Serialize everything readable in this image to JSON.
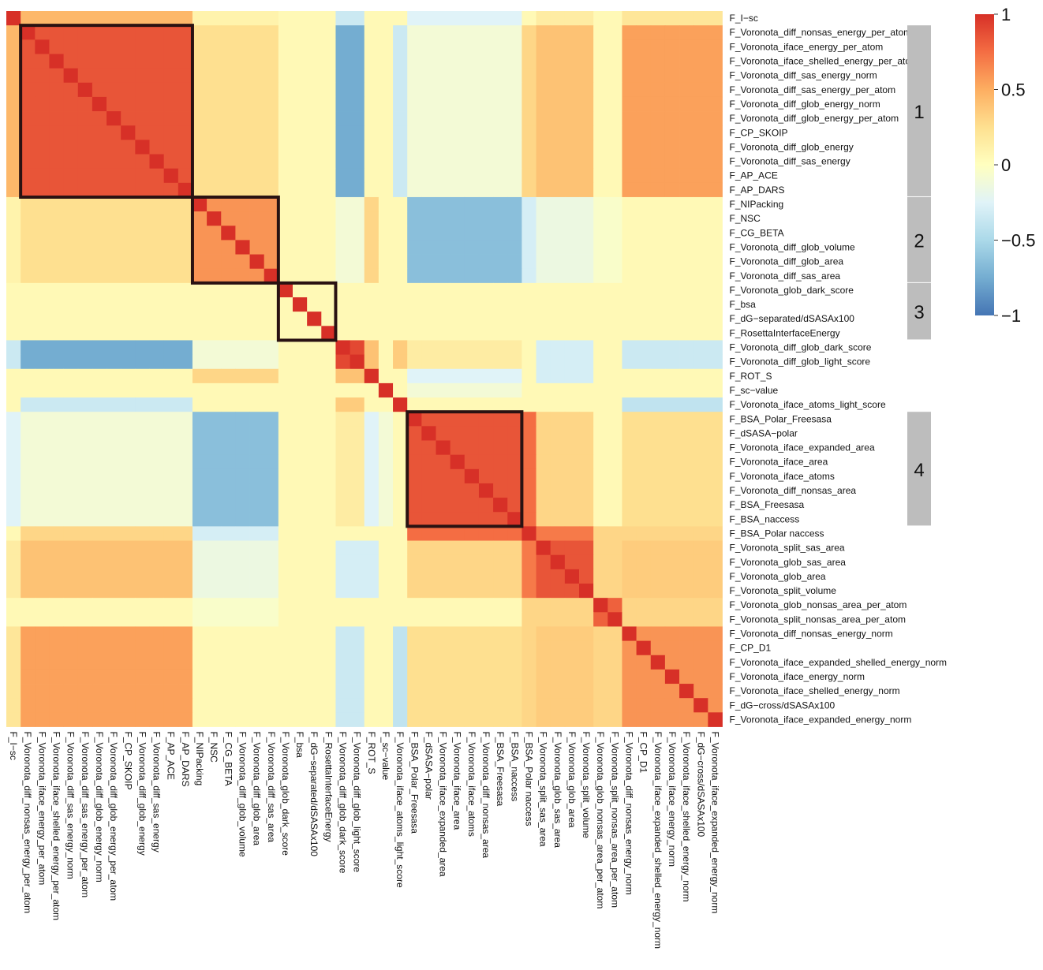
{
  "chart_data": {
    "type": "heatmap",
    "title": "",
    "xlabel": "",
    "ylabel": "",
    "value_range": [
      -1,
      1
    ],
    "grid": false,
    "legend_position": "top-right",
    "colorbar": {
      "ticks": [
        1,
        0.5,
        0,
        -0.5,
        -1
      ],
      "tick_labels": [
        "1",
        "0.5",
        "0",
        "−0.5",
        "−1"
      ],
      "colors": [
        "#d73027",
        "#f46d43",
        "#fdae61",
        "#fee090",
        "#ffffbf",
        "#e0f3f8",
        "#abd9e9",
        "#74add1",
        "#4575b4"
      ]
    },
    "variables": [
      "F_I−sc",
      "F_Voronota_diff_nonsas_energy_per_atom",
      "F_Voronota_iface_energy_per_atom",
      "F_Voronota_iface_shelled_energy_per_atom",
      "F_Voronota_diff_sas_energy_norm",
      "F_Voronota_diff_sas_energy_per_atom",
      "F_Voronota_diff_glob_energy_norm",
      "F_Voronota_diff_glob_energy_per_atom",
      "F_CP_SKOIP",
      "F_Voronota_diff_glob_energy",
      "F_Voronota_diff_sas_energy",
      "F_AP_ACE",
      "F_AP_DARS",
      "F_NIPacking",
      "F_NSC",
      "F_CG_BETA",
      "F_Voronota_diff_glob_volume",
      "F_Voronota_diff_glob_area",
      "F_Voronota_diff_sas_area",
      "F_Voronota_glob_dark_score",
      "F_bsa",
      "F_dG−separated/dSASAx100",
      "F_RosettaInterfaceEnergy",
      "F_Voronota_diff_glob_dark_score",
      "F_Voronota_diff_glob_light_score",
      "F_ROT_S",
      "F_sc−value",
      "F_Voronota_iface_atoms_light_score",
      "F_BSA_Polar_Freesasa",
      "F_dSASA−polar",
      "F_Voronota_iface_expanded_area",
      "F_Voronota_iface_area",
      "F_Voronota_iface_atoms",
      "F_Voronota_diff_nonsas_area",
      "F_BSA_Freesasa",
      "F_BSA_naccess",
      "F_BSA_Polar naccess",
      "F_Voronota_split_sas_area",
      "F_Voronota_glob_sas_area",
      "F_Voronota_glob_area",
      "F_Voronota_split_volume",
      "F_Voronota_glob_nonsas_area_per_atom",
      "F_Voronota_split_nonsas_area_per_atom",
      "F_Voronota_diff_nonsas_energy_norm",
      "F_CP_D1",
      "F_Voronota_iface_expanded_shelled_energy_norm",
      "F_Voronota_iface_energy_norm",
      "F_Voronota_iface_shelled_energy_norm",
      "F_dG−cross/dSASAx100",
      "F_Voronota_iface_expanded_energy_norm"
    ],
    "groups": [
      {
        "id": "G0",
        "start": 0,
        "end": 0
      },
      {
        "id": "G1",
        "start": 1,
        "end": 12
      },
      {
        "id": "G2",
        "start": 13,
        "end": 18
      },
      {
        "id": "G3",
        "start": 19,
        "end": 22
      },
      {
        "id": "G4",
        "start": 23,
        "end": 24
      },
      {
        "id": "G5",
        "start": 25,
        "end": 25
      },
      {
        "id": "G6",
        "start": 26,
        "end": 26
      },
      {
        "id": "G7",
        "start": 27,
        "end": 27
      },
      {
        "id": "G8",
        "start": 28,
        "end": 35
      },
      {
        "id": "G9",
        "start": 36,
        "end": 36
      },
      {
        "id": "G10",
        "start": 37,
        "end": 40
      },
      {
        "id": "G11",
        "start": 41,
        "end": 42
      },
      {
        "id": "G12",
        "start": 43,
        "end": 49
      }
    ],
    "within_group_correlation": {
      "G0": 1,
      "G1": 0.85,
      "G2": 0.6,
      "G3": 0.05,
      "G4": 0.9,
      "G5": 1,
      "G6": 1,
      "G7": 1,
      "G8": 0.85,
      "G9": 1,
      "G10": 0.85,
      "G11": 0.8,
      "G12": 0.6
    },
    "between_group_correlation": {
      "G0|G1": 0.45,
      "G0|G2": 0.1,
      "G0|G4": -0.35,
      "G0|G8": -0.25,
      "G0|G10": 0.15,
      "G0|G12": 0.2,
      "G1|G2": 0.25,
      "G1|G4": -0.75,
      "G1|G7": -0.35,
      "G1|G8": -0.1,
      "G1|G9": 0.3,
      "G1|G10": 0.4,
      "G1|G12": 0.55,
      "G2|G4": -0.1,
      "G2|G5": 0.3,
      "G2|G8": -0.65,
      "G2|G9": -0.3,
      "G2|G10": -0.15,
      "G2|G11": -0.05,
      "G4|G5": 0.4,
      "G4|G7": 0.35,
      "G4|G8": 0.15,
      "G4|G10": -0.3,
      "G4|G12": -0.35,
      "G5|G8": -0.25,
      "G5|G10": -0.3,
      "G6|G8": -0.1,
      "G7|G12": -0.4,
      "G8|G9": 0.75,
      "G8|G10": 0.3,
      "G8|G12": 0.25,
      "G9|G10": 0.7,
      "G9|G11": 0.3,
      "G9|G12": 0.3,
      "G10|G11": 0.3,
      "G10|G12": 0.35,
      "G11|G12": 0.3,
      "G3|G*": 0.05
    },
    "highlight_boxes": [
      {
        "start": 1,
        "end": 12
      },
      {
        "start": 13,
        "end": 18
      },
      {
        "start": 19,
        "end": 22
      },
      {
        "start": 28,
        "end": 35
      }
    ],
    "cluster_bands": [
      {
        "label": "1",
        "start": 1,
        "end": 12
      },
      {
        "label": "2",
        "start": 13,
        "end": 18
      },
      {
        "label": "3",
        "start": 19,
        "end": 22
      },
      {
        "label": "4",
        "start": 28,
        "end": 35
      }
    ]
  }
}
